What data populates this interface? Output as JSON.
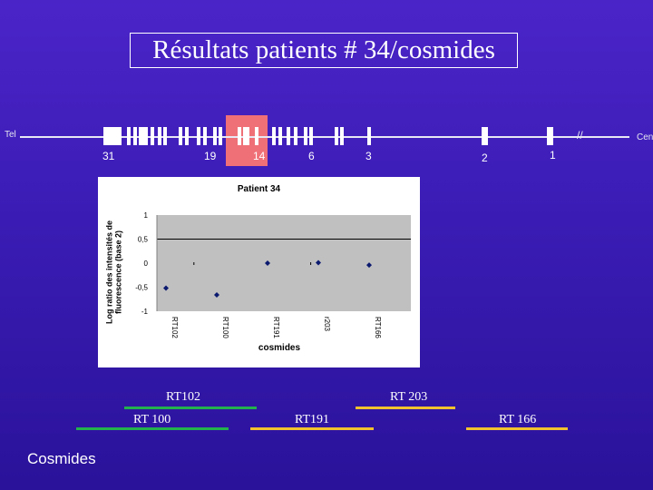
{
  "title": "Résultats patients # 34/cosmides",
  "map": {
    "left_label": "Tel",
    "right_label": "Cen",
    "break_mark": "//",
    "numbers": [
      "31",
      "19",
      "14",
      "6",
      "3",
      "2",
      "1"
    ]
  },
  "chart_data": {
    "type": "scatter",
    "title": "Patient 34",
    "ylabel": "Log ratio des intensités de fluorescence (base 2)",
    "xlabel": "cosmides",
    "yticks": [
      "1",
      "0,5",
      "0",
      "-0,5",
      "-1"
    ],
    "ylim": [
      -1,
      1
    ],
    "categories": [
      "RT102",
      "RT100",
      "RT191",
      "r203",
      "RT166"
    ],
    "points": [
      {
        "x": "RT102",
        "y": -0.52
      },
      {
        "x": "RT100",
        "y": -0.66
      },
      {
        "x": "RT191",
        "y": 0.0
      },
      {
        "x": "r203",
        "y": 0.01
      },
      {
        "x": "RT166",
        "y": -0.04
      }
    ],
    "grid": "horizontal",
    "colors": {
      "points": "#0b1a6e",
      "plot_bg": "#c0c0c0",
      "gridline": "#000000"
    }
  },
  "legend": {
    "labels": [
      "RT102",
      "RT 203",
      "RT 100",
      "RT191",
      "RT 166"
    ],
    "bottom_label": "Cosmides",
    "colors": {
      "green": "#22b14c",
      "yellow": "#f2c12e"
    }
  }
}
